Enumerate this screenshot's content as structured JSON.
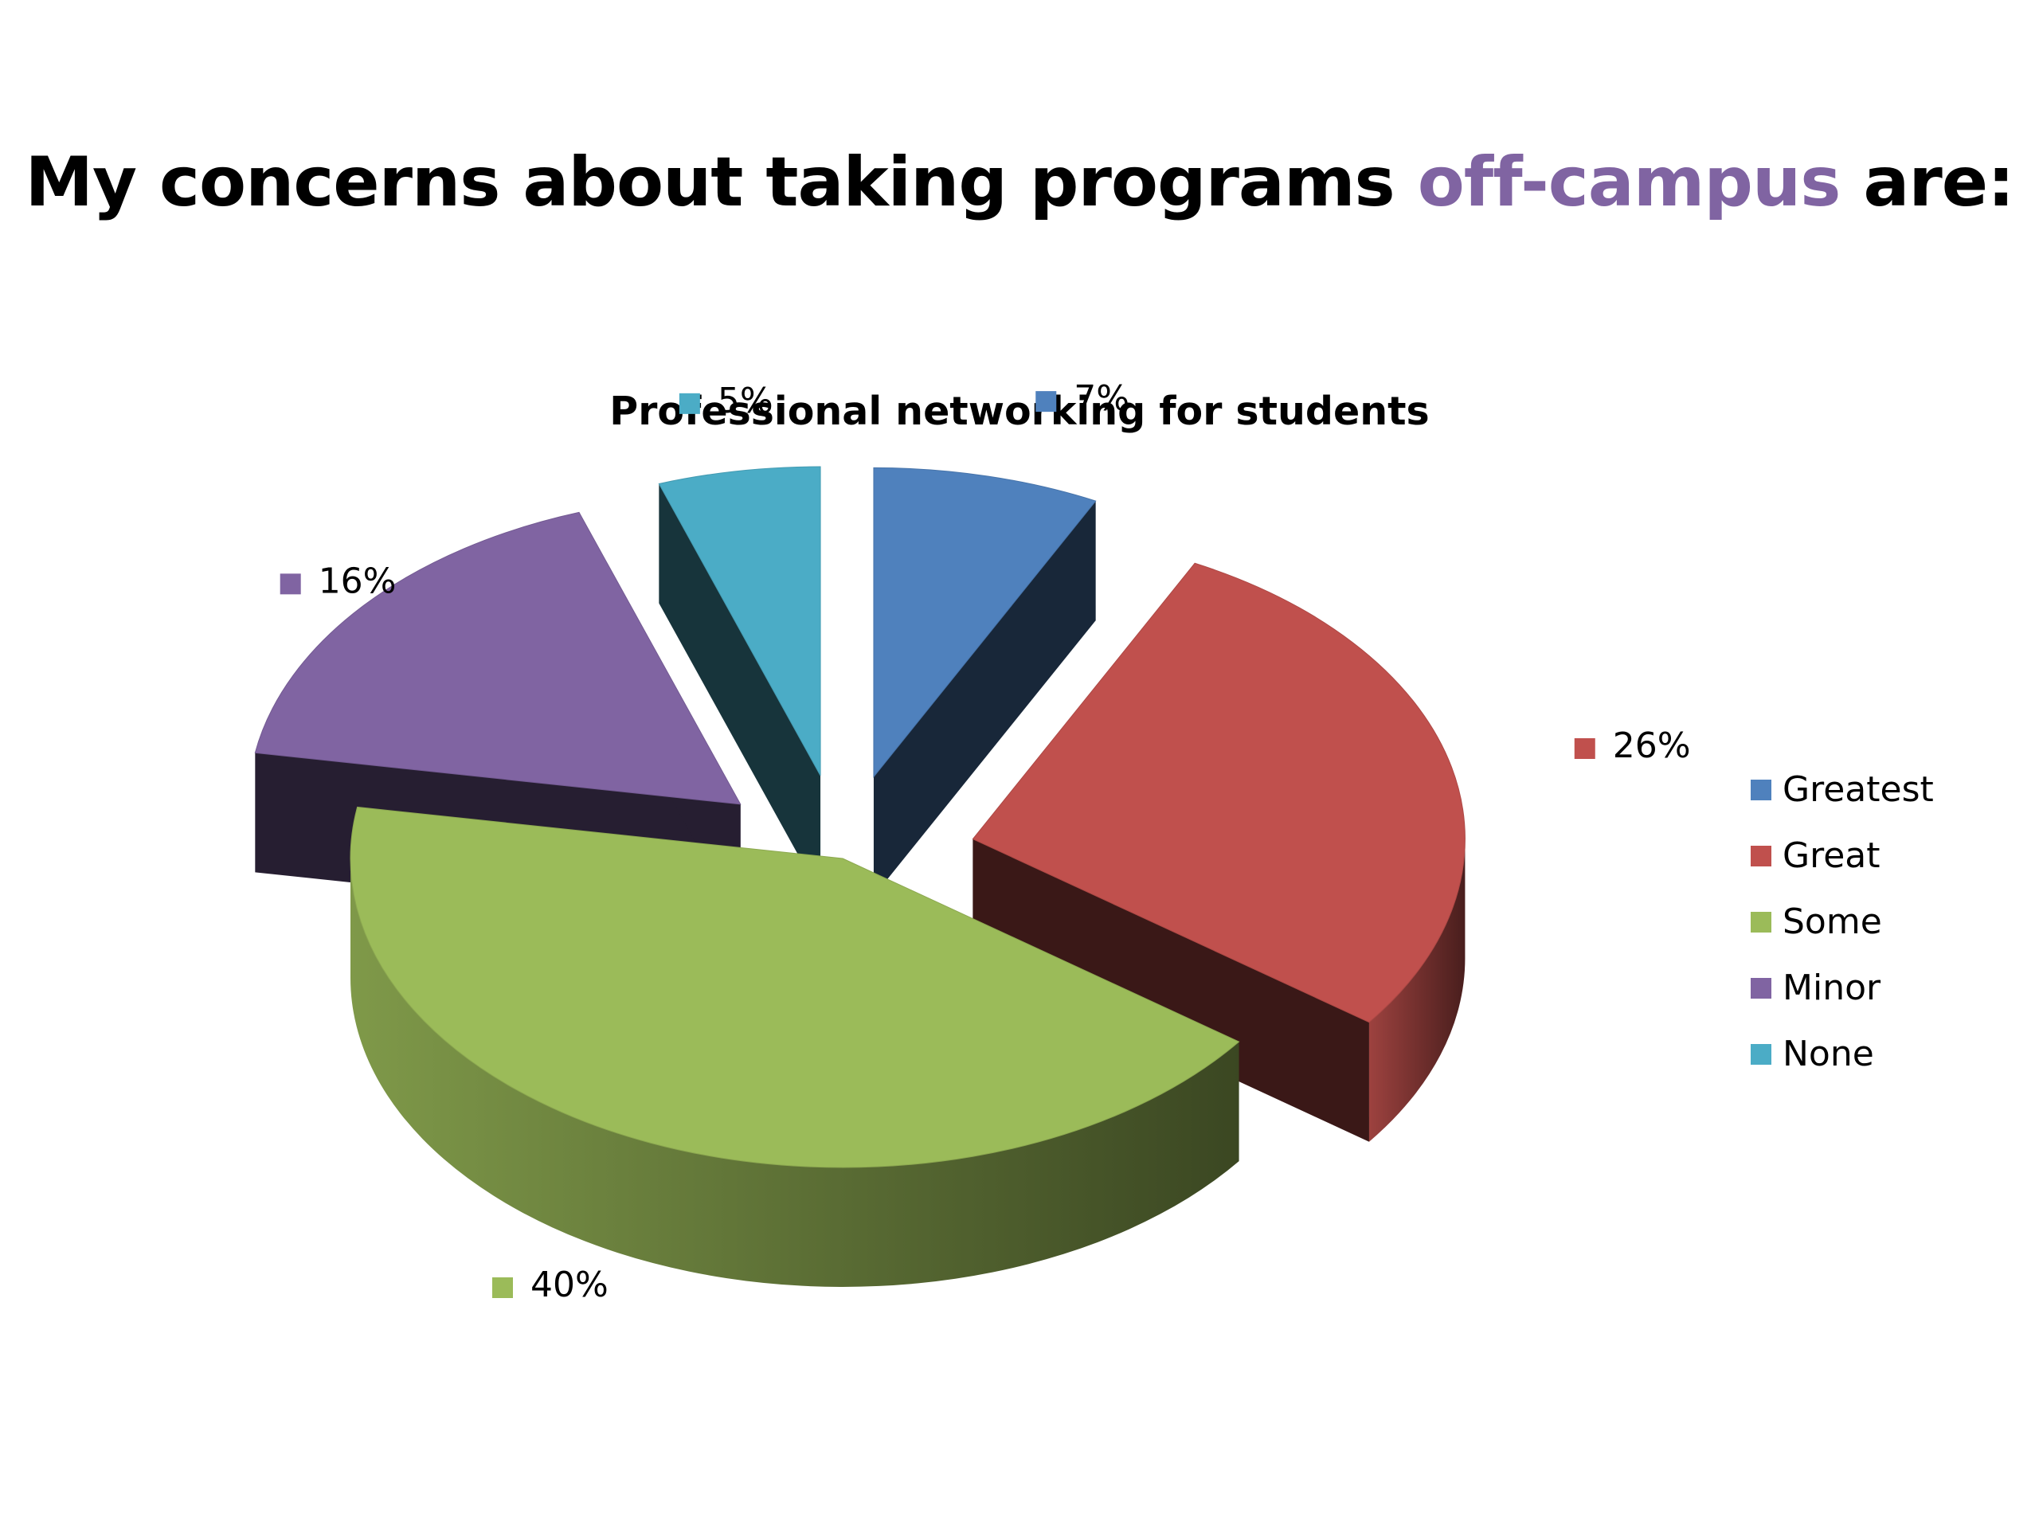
{
  "slide": {
    "title_prefix": "My concerns about taking programs",
    "title_highlight": "off-campus",
    "title_suffix": "are:",
    "highlight_color": "#8064A2"
  },
  "chart_data": {
    "type": "pie",
    "style": "3d-exploded",
    "title": "Professional networking for students",
    "legend_position": "right",
    "data_label_format": "percent",
    "slices": [
      {
        "label": "Greatest",
        "value": 7,
        "display": "7%",
        "color": "#4F81BD"
      },
      {
        "label": "Great",
        "value": 26,
        "display": "26%",
        "color": "#C0504D"
      },
      {
        "label": "Some",
        "value": 40,
        "display": "40%",
        "color": "#9BBB59"
      },
      {
        "label": "Minor",
        "value": 16,
        "display": "16%",
        "color": "#8064A2"
      },
      {
        "label": "None",
        "value": 5,
        "display": "5%",
        "color": "#4BACC6"
      }
    ]
  }
}
